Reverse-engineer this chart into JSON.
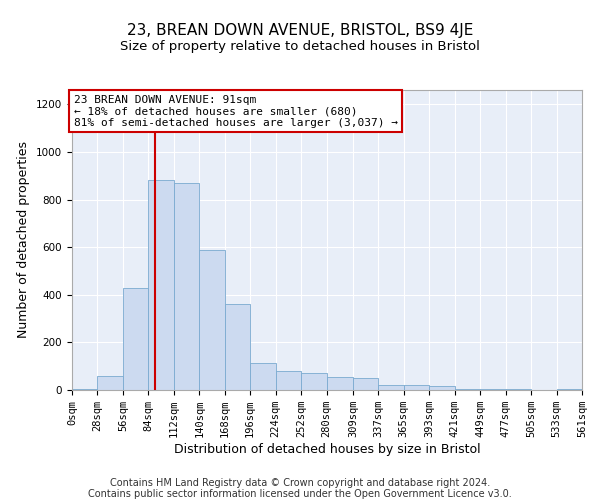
{
  "title": "23, BREAN DOWN AVENUE, BRISTOL, BS9 4JE",
  "subtitle": "Size of property relative to detached houses in Bristol",
  "xlabel": "Distribution of detached houses by size in Bristol",
  "ylabel": "Number of detached properties",
  "footer_line1": "Contains HM Land Registry data © Crown copyright and database right 2024.",
  "footer_line2": "Contains public sector information licensed under the Open Government Licence v3.0.",
  "annotation_line1": "23 BREAN DOWN AVENUE: 91sqm",
  "annotation_line2": "← 18% of detached houses are smaller (680)",
  "annotation_line3": "81% of semi-detached houses are larger (3,037) →",
  "property_sqm": 91,
  "bin_edges": [
    0,
    28,
    56,
    84,
    112,
    140,
    168,
    196,
    224,
    252,
    280,
    309,
    337,
    365,
    393,
    421,
    449,
    477,
    505,
    533,
    561
  ],
  "bar_heights": [
    5,
    60,
    430,
    880,
    870,
    590,
    360,
    115,
    80,
    70,
    55,
    50,
    20,
    20,
    15,
    5,
    5,
    3,
    0,
    3
  ],
  "bar_color": "#ccdaf0",
  "bar_edge_color": "#7aaad0",
  "vline_color": "#cc0000",
  "ylim": [
    0,
    1260
  ],
  "yticks": [
    0,
    200,
    400,
    600,
    800,
    1000,
    1200
  ],
  "background_color": "#e8eef8",
  "title_fontsize": 11,
  "subtitle_fontsize": 9.5,
  "axis_label_fontsize": 9,
  "tick_fontsize": 7.5,
  "footer_fontsize": 7,
  "annotation_fontsize": 8
}
